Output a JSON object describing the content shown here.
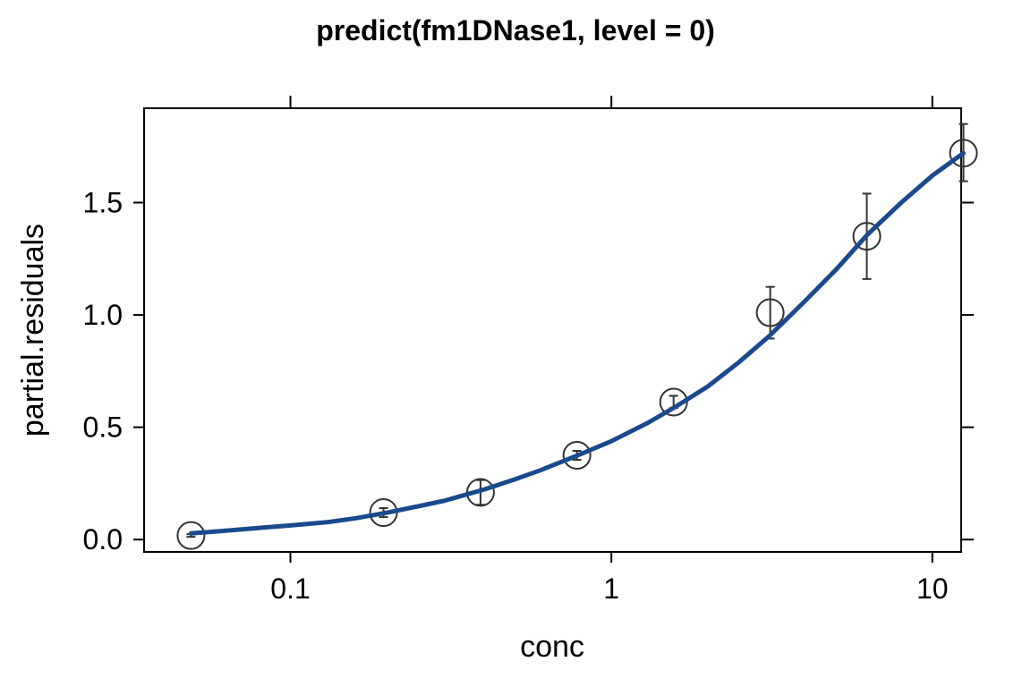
{
  "chart_data": {
    "type": "scatter",
    "title": "predict(fm1DNase1, level = 0)",
    "xlabel": "conc",
    "ylabel": "partial.residuals",
    "x_scale": "log10",
    "xlim": [
      0.035,
      12.3
    ],
    "ylim": [
      -0.055,
      1.92
    ],
    "x_ticks": [
      0.1,
      1,
      10
    ],
    "x_tick_labels": [
      "0.1",
      "1",
      "10"
    ],
    "y_ticks": [
      0.0,
      0.5,
      1.0,
      1.5
    ],
    "y_tick_labels": [
      "0.0",
      "0.5",
      "1.0",
      "1.5"
    ],
    "grid": false,
    "colors": {
      "curve": "#1a4a8c",
      "points": "#333333"
    },
    "points": [
      {
        "x": 0.049,
        "y": 0.018,
        "lo": 0.012,
        "hi": 0.024
      },
      {
        "x": 0.195,
        "y": 0.12,
        "lo": 0.1,
        "hi": 0.14
      },
      {
        "x": 0.391,
        "y": 0.21,
        "lo": 0.155,
        "hi": 0.265
      },
      {
        "x": 0.781,
        "y": 0.375,
        "lo": 0.355,
        "hi": 0.395
      },
      {
        "x": 1.563,
        "y": 0.612,
        "lo": 0.585,
        "hi": 0.64
      },
      {
        "x": 3.125,
        "y": 1.01,
        "lo": 0.895,
        "hi": 1.125
      },
      {
        "x": 6.25,
        "y": 1.35,
        "lo": 1.16,
        "hi": 1.54
      },
      {
        "x": 12.5,
        "y": 1.72,
        "lo": 1.595,
        "hi": 1.85
      }
    ],
    "fitted_line": {
      "x": [
        0.049,
        0.06,
        0.08,
        0.1,
        0.13,
        0.16,
        0.2,
        0.25,
        0.3,
        0.4,
        0.5,
        0.6,
        0.8,
        1.0,
        1.3,
        1.6,
        2.0,
        2.5,
        3.1,
        4.0,
        5.0,
        6.25,
        8.0,
        10.0,
        12.5
      ],
      "y": [
        0.028,
        0.037,
        0.052,
        0.063,
        0.077,
        0.095,
        0.12,
        0.148,
        0.172,
        0.222,
        0.268,
        0.308,
        0.38,
        0.438,
        0.52,
        0.595,
        0.682,
        0.79,
        0.905,
        1.06,
        1.2,
        1.355,
        1.5,
        1.62,
        1.72
      ]
    }
  }
}
